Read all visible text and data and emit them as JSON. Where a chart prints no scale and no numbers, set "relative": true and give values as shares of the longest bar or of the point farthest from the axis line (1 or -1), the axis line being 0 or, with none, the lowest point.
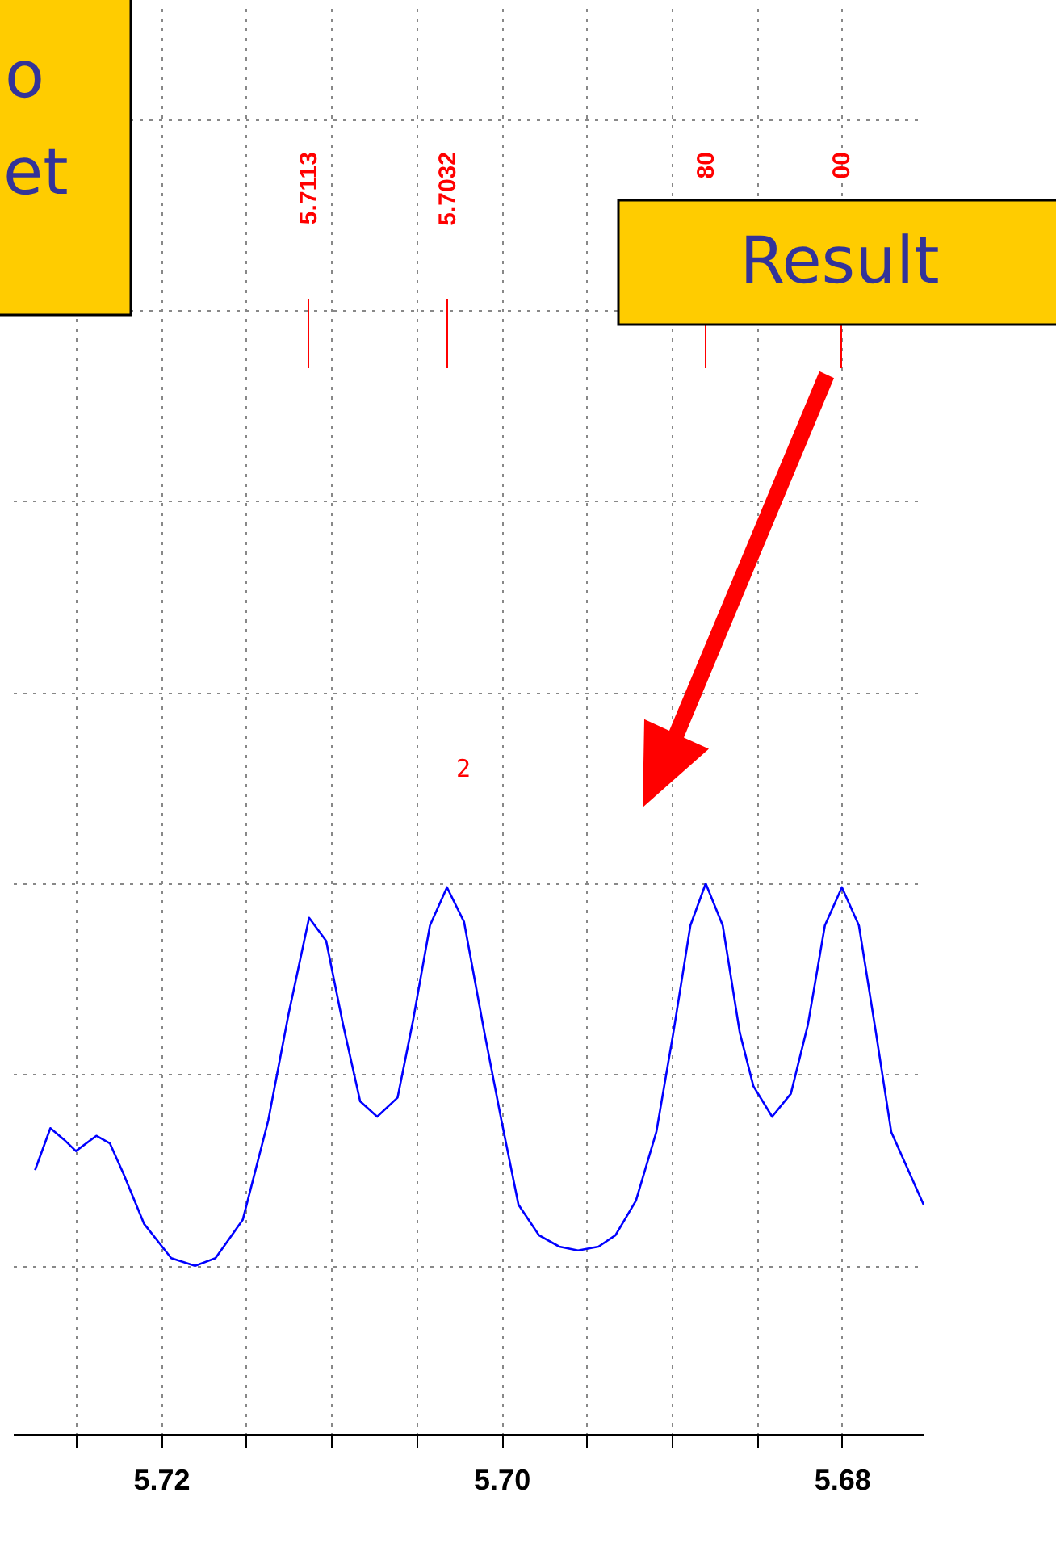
{
  "chart_data": {
    "type": "line",
    "relative": true,
    "x": [
      5.7274,
      5.7265,
      5.7257,
      5.725,
      5.7238,
      5.723,
      5.7222,
      5.721,
      5.7194,
      5.718,
      5.7168,
      5.7152,
      5.7137,
      5.7125,
      5.7113,
      5.7103,
      5.7093,
      5.7083,
      5.7073,
      5.7061,
      5.7052,
      5.7042,
      5.7032,
      5.7022,
      5.701,
      5.7,
      5.699,
      5.6978,
      5.6966,
      5.6955,
      5.6943,
      5.6933,
      5.6921,
      5.6909,
      5.6899,
      5.6889,
      5.688,
      5.687,
      5.686,
      5.6852,
      5.6841,
      5.683,
      5.682,
      5.681,
      5.68,
      5.679,
      5.678,
      5.6771,
      5.6752
    ],
    "series": [
      {
        "color": "#0000ff",
        "values": [
          0.25,
          0.36,
          0.33,
          0.3,
          0.34,
          0.32,
          0.24,
          0.11,
          0.02,
          0,
          0.02,
          0.12,
          0.38,
          0.66,
          0.91,
          0.85,
          0.63,
          0.43,
          0.39,
          0.44,
          0.64,
          0.89,
          0.99,
          0.9,
          0.61,
          0.38,
          0.16,
          0.08,
          0.05,
          0.04,
          0.05,
          0.08,
          0.17,
          0.35,
          0.61,
          0.89,
          1.0,
          0.89,
          0.61,
          0.47,
          0.39,
          0.45,
          0.63,
          0.89,
          0.99,
          0.89,
          0.61,
          0.35,
          0.16
        ]
      }
    ],
    "xlim": [
      5.7287,
      5.6752
    ],
    "xticks": [
      {
        "value": 5.725,
        "label": null
      },
      5.72,
      {
        "value": 5.715,
        "label": null
      },
      {
        "value": 5.71,
        "label": null
      },
      {
        "value": 5.705,
        "label": null
      },
      {
        "value": 5.7,
        "label": "5.70"
      },
      {
        "value": 5.695,
        "label": null
      },
      {
        "value": 5.69,
        "label": null
      },
      {
        "value": 5.685,
        "label": null
      },
      5.68
    ],
    "grid": true,
    "tick_labels": "x",
    "line_style": "solid",
    "marker": "none",
    "annotations": [
      "5.7113",
      "5.7032",
      "80",
      "00",
      "2",
      "Result",
      "o",
      "et"
    ]
  }
}
